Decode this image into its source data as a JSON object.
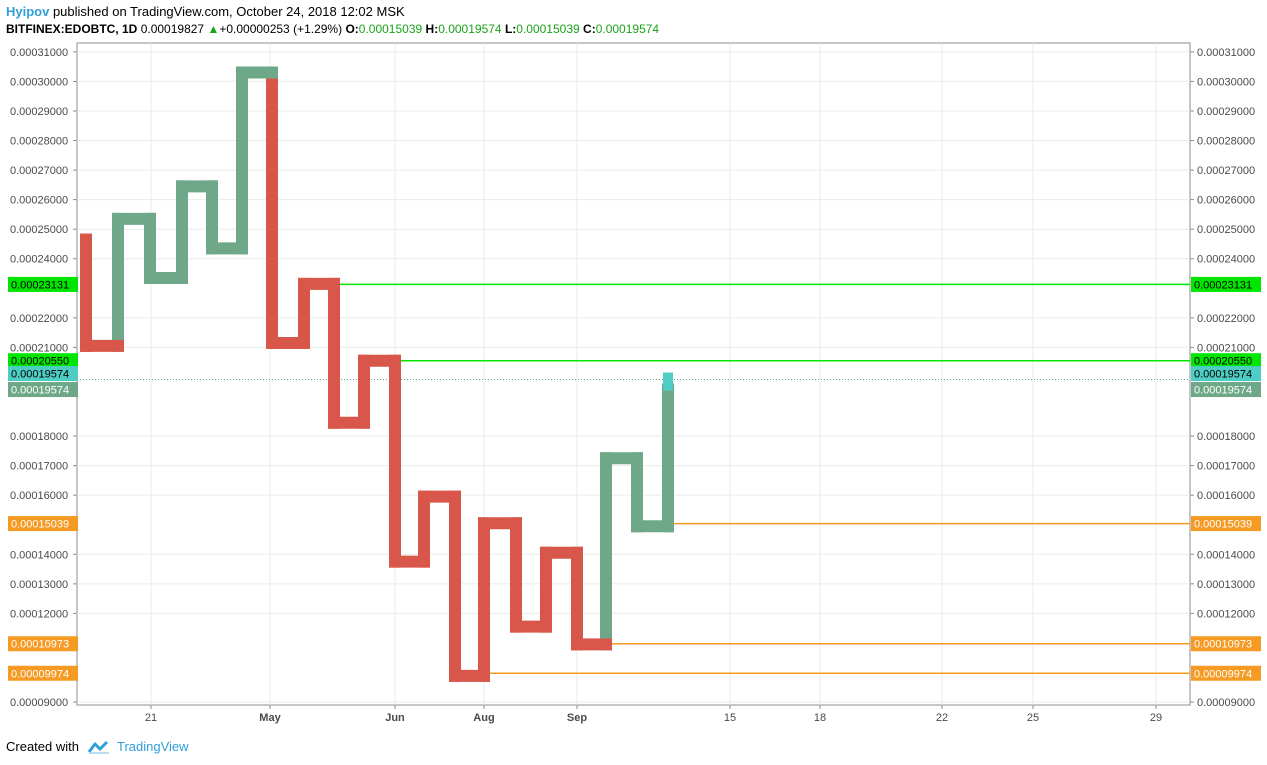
{
  "header": {
    "author": "Hyipov",
    "published_text": " published on TradingView.com, October 24, 2018 12:02 MSK",
    "symbol": "BITFINEX:EDOBTC, 1D",
    "last": "0.00019827",
    "change_arrow": "▲",
    "change": "+0.00000253 (+1.29%)",
    "o_label": "O:",
    "o_value": "0.00015039",
    "h_label": "H:",
    "h_value": "0.00019574",
    "l_label": "L:",
    "l_value": "0.00015039",
    "c_label": "C:",
    "c_value": "0.00019574"
  },
  "footer": {
    "created_with": "Created with",
    "brand": "TradingView"
  },
  "colors": {
    "up": "#6ea888",
    "down": "#d9574a",
    "last_up": "#4ecdc4",
    "resistance": "#00e600",
    "support": "#f59a23",
    "grid": "#ebebeb"
  },
  "chart_data": {
    "type": "line",
    "style": "kagi",
    "ylim": [
      8.9e-05,
      0.000313
    ],
    "yticks": [
      "0.00031000",
      "0.00030000",
      "0.00029000",
      "0.00028000",
      "0.00027000",
      "0.00026000",
      "0.00025000",
      "0.00024000",
      "0.00022000",
      "0.00021000",
      "0.00018000",
      "0.00017000",
      "0.00016000",
      "0.00014000",
      "0.00013000",
      "0.00012000",
      "0.00009000"
    ],
    "xticks": [
      "21",
      "May",
      "Jun",
      "Aug",
      "Sep",
      "15",
      "18",
      "22",
      "25",
      "29"
    ],
    "kagi_levels": [
      0.0002465,
      0.0002105,
      0.0002535,
      0.0002335,
      0.0002645,
      0.0002435,
      0.000303,
      0.0002115,
      0.0002315,
      0.0001845,
      0.0002055,
      0.0001375,
      0.0001595,
      9.885e-05,
      0.0001505,
      0.0001155,
      0.0001405,
      0.0001095,
      0.0001725,
      0.0001495,
      0.00019574
    ],
    "kagi_colors": [
      "down",
      "down",
      "up",
      "up",
      "up",
      "up",
      "up",
      "down",
      "down",
      "down",
      "down",
      "down",
      "down",
      "down",
      "down",
      "down",
      "down",
      "down",
      "up",
      "up",
      "up"
    ],
    "kagi_thickness": [
      "thin",
      "thin",
      "thick",
      "thick",
      "thick",
      "thick",
      "thick",
      "thin",
      "thin",
      "thin",
      "thin",
      "thin",
      "thin",
      "thin",
      "thin",
      "thin",
      "thin",
      "thin",
      "thick",
      "thick",
      "thick"
    ],
    "horizontal_lines": [
      {
        "value": "0.00023131",
        "kind": "resistance",
        "from_level_index": 8
      },
      {
        "value": "0.00020550",
        "kind": "resistance",
        "from_level_index": 10
      },
      {
        "value": "0.00015039",
        "kind": "support",
        "from_level_index": 19
      },
      {
        "value": "0.00010973",
        "kind": "support",
        "from_level_index": 17
      },
      {
        "value": "0.00009974",
        "kind": "support",
        "from_level_index": 13
      }
    ],
    "price_labels": [
      {
        "value": "0.00019574",
        "kind": "last_up"
      },
      {
        "value": "0.00019574",
        "kind": "close"
      }
    ]
  }
}
